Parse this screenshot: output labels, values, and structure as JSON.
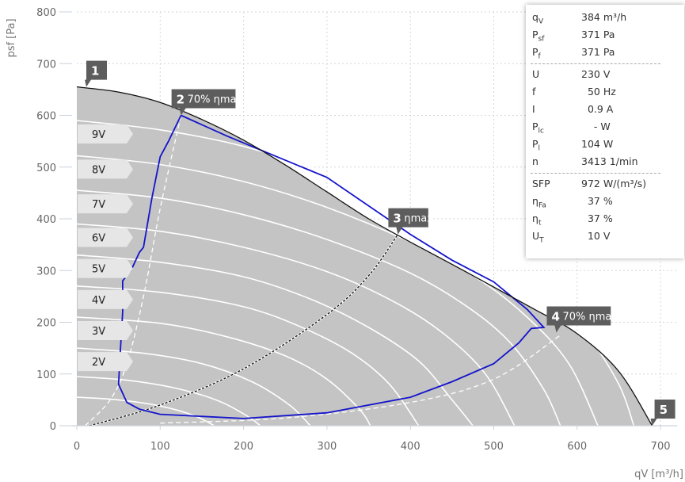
{
  "chart_data": {
    "type": "line",
    "xlabel": "qV [m³/h]",
    "ylabel": "psf [Pa]",
    "xlim": [
      0,
      720
    ],
    "ylim": [
      0,
      800
    ],
    "xticks": [
      0,
      100,
      200,
      300,
      400,
      500,
      600,
      700
    ],
    "yticks": [
      0,
      100,
      200,
      300,
      400,
      500,
      600,
      700,
      800
    ],
    "grid": true,
    "max_curve": [
      [
        0,
        655
      ],
      [
        50,
        645
      ],
      [
        100,
        625
      ],
      [
        150,
        592
      ],
      [
        200,
        552
      ],
      [
        250,
        504
      ],
      [
        300,
        452
      ],
      [
        350,
        400
      ],
      [
        400,
        355
      ],
      [
        450,
        312
      ],
      [
        500,
        268
      ],
      [
        550,
        224
      ],
      [
        600,
        178
      ],
      [
        650,
        105
      ],
      [
        690,
        0
      ]
    ],
    "voltage_curves": [
      {
        "label": "9V",
        "points": [
          [
            0,
            590
          ],
          [
            100,
            572
          ],
          [
            200,
            540
          ],
          [
            300,
            488
          ],
          [
            400,
            420
          ],
          [
            500,
            335
          ],
          [
            560,
            260
          ],
          [
            610,
            180
          ],
          [
            650,
            80
          ],
          [
            668,
            0
          ]
        ]
      },
      {
        "label": "8V",
        "points": [
          [
            0,
            522
          ],
          [
            100,
            505
          ],
          [
            200,
            472
          ],
          [
            300,
            422
          ],
          [
            400,
            355
          ],
          [
            480,
            285
          ],
          [
            540,
            210
          ],
          [
            590,
            120
          ],
          [
            625,
            0
          ]
        ]
      },
      {
        "label": "7V",
        "points": [
          [
            0,
            455
          ],
          [
            100,
            440
          ],
          [
            200,
            408
          ],
          [
            300,
            360
          ],
          [
            400,
            295
          ],
          [
            470,
            228
          ],
          [
            520,
            160
          ],
          [
            560,
            70
          ],
          [
            580,
            0
          ]
        ]
      },
      {
        "label": "6V",
        "points": [
          [
            0,
            390
          ],
          [
            100,
            376
          ],
          [
            200,
            345
          ],
          [
            300,
            298
          ],
          [
            380,
            240
          ],
          [
            440,
            178
          ],
          [
            490,
            100
          ],
          [
            525,
            0
          ]
        ]
      },
      {
        "label": "5V",
        "points": [
          [
            0,
            330
          ],
          [
            100,
            316
          ],
          [
            200,
            288
          ],
          [
            280,
            245
          ],
          [
            350,
            190
          ],
          [
            410,
            125
          ],
          [
            450,
            50
          ],
          [
            475,
            0
          ]
        ]
      },
      {
        "label": "4V",
        "points": [
          [
            0,
            270
          ],
          [
            100,
            258
          ],
          [
            200,
            230
          ],
          [
            270,
            190
          ],
          [
            330,
            140
          ],
          [
            375,
            80
          ],
          [
            410,
            0
          ]
        ]
      },
      {
        "label": "3V",
        "points": [
          [
            0,
            210
          ],
          [
            100,
            198
          ],
          [
            180,
            172
          ],
          [
            250,
            135
          ],
          [
            300,
            90
          ],
          [
            340,
            30
          ],
          [
            352,
            0
          ]
        ]
      },
      {
        "label": "2V",
        "points": [
          [
            0,
            150
          ],
          [
            80,
            140
          ],
          [
            150,
            120
          ],
          [
            210,
            85
          ],
          [
            255,
            40
          ],
          [
            280,
            0
          ]
        ]
      },
      {
        "label": "",
        "points": [
          [
            0,
            95
          ],
          [
            60,
            88
          ],
          [
            120,
            72
          ],
          [
            170,
            48
          ],
          [
            205,
            18
          ],
          [
            220,
            0
          ]
        ]
      },
      {
        "label": "",
        "points": [
          [
            0,
            55
          ],
          [
            50,
            50
          ],
          [
            100,
            38
          ],
          [
            140,
            20
          ],
          [
            165,
            0
          ]
        ]
      }
    ],
    "efficiency_curves": [
      {
        "name": "70% ηmax",
        "style": "white-dashed",
        "points": [
          [
            10,
            0
          ],
          [
            40,
            50
          ],
          [
            60,
            120
          ],
          [
            80,
            250
          ],
          [
            100,
            420
          ],
          [
            125,
            600
          ]
        ]
      },
      {
        "name": "ηmax",
        "style": "black-dashed",
        "points": [
          [
            15,
            0
          ],
          [
            100,
            40
          ],
          [
            200,
            110
          ],
          [
            300,
            215
          ],
          [
            350,
            290
          ],
          [
            385,
            370
          ]
        ]
      },
      {
        "name": "70% ηmax",
        "style": "white-dashed",
        "points": [
          [
            100,
            5
          ],
          [
            250,
            15
          ],
          [
            400,
            45
          ],
          [
            500,
            90
          ],
          [
            580,
            175
          ]
        ]
      }
    ],
    "operating_limit": [
      [
        125,
        600
      ],
      [
        180,
        560
      ],
      [
        300,
        480
      ],
      [
        400,
        370
      ],
      [
        450,
        320
      ],
      [
        500,
        278
      ],
      [
        540,
        225
      ],
      [
        560,
        190
      ],
      [
        545,
        188
      ],
      [
        530,
        160
      ],
      [
        500,
        120
      ],
      [
        450,
        85
      ],
      [
        400,
        55
      ],
      [
        300,
        25
      ],
      [
        200,
        14
      ],
      [
        100,
        22
      ],
      [
        75,
        32
      ],
      [
        60,
        45
      ],
      [
        50,
        80
      ],
      [
        52,
        140
      ],
      [
        55,
        220
      ],
      [
        55,
        280
      ],
      [
        65,
        300
      ],
      [
        75,
        335
      ],
      [
        80,
        345
      ],
      [
        90,
        440
      ],
      [
        100,
        520
      ],
      [
        110,
        550
      ],
      [
        125,
        600
      ]
    ],
    "markers": [
      {
        "num": "1",
        "text": "",
        "x": 0,
        "y": 655
      },
      {
        "num": "2",
        "text": "70% ηmax",
        "x": 125,
        "y": 600
      },
      {
        "num": "3",
        "text": "ηmax",
        "x": 385,
        "y": 370
      },
      {
        "num": "4",
        "text": "70% ηmax",
        "x": 575,
        "y": 180
      },
      {
        "num": "5",
        "text": "",
        "x": 690,
        "y": 0
      }
    ]
  },
  "colors": {
    "area_fill": "#c4c4c4",
    "operating_line": "#1414cc",
    "max_curve": "#111111",
    "marker_bg": "#5d5d5d",
    "voltage_label_bg": "#e6e6e6"
  },
  "info_panel": {
    "group1": [
      {
        "label": "q",
        "sub": "V",
        "value": "384 m³/h"
      },
      {
        "label": "P",
        "sub": "sf",
        "value": "371 Pa"
      },
      {
        "label": "P",
        "sub": "f",
        "value": "371 Pa"
      }
    ],
    "group2": [
      {
        "label": "U",
        "sub": "",
        "value": "230 V"
      },
      {
        "label": "f",
        "sub": "",
        "value": "  50 Hz"
      },
      {
        "label": "I",
        "sub": "",
        "value": "  0.9 A"
      },
      {
        "label": "P",
        "sub": "lc",
        "value": "    - W"
      },
      {
        "label": "P",
        "sub": "l",
        "value": "104 W"
      },
      {
        "label": "n",
        "sub": "",
        "value": "3413 1/min"
      }
    ],
    "group3": [
      {
        "label": "SFP",
        "sub": "",
        "value": "972 W/(m³/s)"
      },
      {
        "label": "η",
        "sub": "Fa",
        "value": "  37 %"
      },
      {
        "label": "η",
        "sub": "t",
        "value": "  37 %"
      },
      {
        "label": "U",
        "sub": "T",
        "value": "  10 V"
      }
    ]
  }
}
